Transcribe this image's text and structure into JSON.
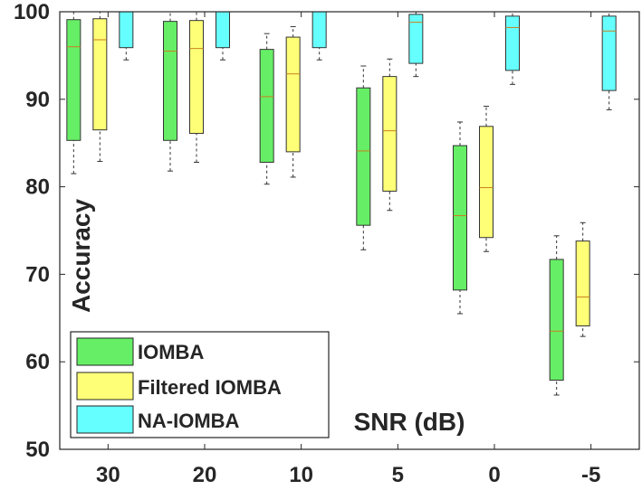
{
  "chart_data": {
    "type": "boxplot",
    "title": "",
    "xlabel": "SNR (dB)",
    "ylabel": "Accuracy",
    "ylim": [
      50,
      100
    ],
    "yticks": [
      50,
      60,
      70,
      80,
      90,
      100
    ],
    "categories": [
      "30",
      "20",
      "10",
      "5",
      "0",
      "-5"
    ],
    "legend_position": "bottom-left",
    "series": [
      {
        "name": "IOMBA",
        "color": "#66EE66",
        "boxes": [
          {
            "whisker_low": 81.5,
            "q1": 85.3,
            "median": 96.0,
            "q3": 99.1,
            "whisker_high": 100
          },
          {
            "whisker_low": 81.8,
            "q1": 85.3,
            "median": 95.5,
            "q3": 98.9,
            "whisker_high": 100
          },
          {
            "whisker_low": 80.3,
            "q1": 82.8,
            "median": 90.3,
            "q3": 95.7,
            "whisker_high": 97.5
          },
          {
            "whisker_low": 72.8,
            "q1": 75.6,
            "median": 84.1,
            "q3": 91.3,
            "whisker_high": 93.8
          },
          {
            "whisker_low": 65.5,
            "q1": 68.2,
            "median": 76.7,
            "q3": 84.7,
            "whisker_high": 87.4
          },
          {
            "whisker_low": 56.2,
            "q1": 57.9,
            "median": 63.5,
            "q3": 71.7,
            "whisker_high": 74.4
          }
        ]
      },
      {
        "name": "Filtered IOMBA",
        "color": "#FFFF77",
        "boxes": [
          {
            "whisker_low": 82.9,
            "q1": 86.5,
            "median": 96.8,
            "q3": 99.2,
            "whisker_high": 100
          },
          {
            "whisker_low": 82.8,
            "q1": 86.1,
            "median": 95.8,
            "q3": 99.0,
            "whisker_high": 100
          },
          {
            "whisker_low": 81.1,
            "q1": 84.0,
            "median": 92.9,
            "q3": 97.1,
            "whisker_high": 98.3
          },
          {
            "whisker_low": 77.3,
            "q1": 79.5,
            "median": 86.4,
            "q3": 92.6,
            "whisker_high": 94.6
          },
          {
            "whisker_low": 72.6,
            "q1": 74.2,
            "median": 79.9,
            "q3": 86.9,
            "whisker_high": 89.2
          },
          {
            "whisker_low": 62.9,
            "q1": 64.1,
            "median": 67.4,
            "q3": 73.8,
            "whisker_high": 75.9
          }
        ]
      },
      {
        "name": "NA-IOMBA",
        "color": "#66FFFF",
        "boxes": [
          {
            "whisker_low": 94.5,
            "q1": 95.9,
            "median": 100,
            "q3": 100,
            "whisker_high": 100
          },
          {
            "whisker_low": 94.5,
            "q1": 95.9,
            "median": 100,
            "q3": 100,
            "whisker_high": 100
          },
          {
            "whisker_low": 94.5,
            "q1": 95.9,
            "median": 100,
            "q3": 100,
            "whisker_high": 100
          },
          {
            "whisker_low": 92.6,
            "q1": 94.1,
            "median": 98.8,
            "q3": 99.7,
            "whisker_high": 100
          },
          {
            "whisker_low": 91.7,
            "q1": 93.3,
            "median": 98.2,
            "q3": 99.5,
            "whisker_high": 100
          },
          {
            "whisker_low": 88.8,
            "q1": 91.0,
            "median": 97.8,
            "q3": 99.5,
            "whisker_high": 100
          }
        ]
      }
    ]
  }
}
